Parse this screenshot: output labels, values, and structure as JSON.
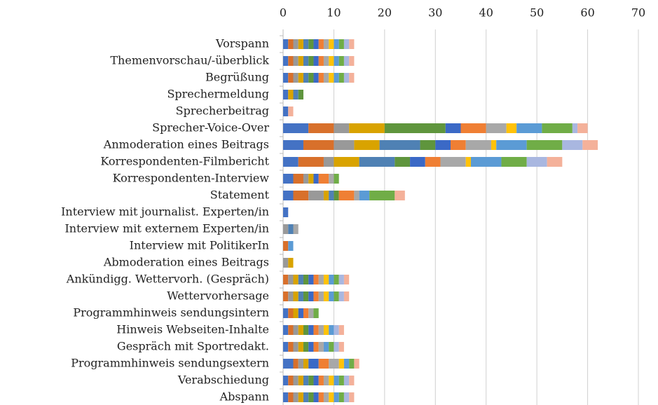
{
  "chart_data": {
    "type": "stacked_bar_horizontal",
    "categories": [
      "Vorspann",
      "Themenvorschau/-überblick",
      "Begrüßung",
      "Sprechermeldung",
      "Sprecherbeitrag",
      "Sprecher-Voice-Over",
      "Anmoderation eines Beitrags",
      "Korrespondenten-Filmbericht",
      "Korrespondenten-Interview",
      "Statement",
      "Interview mit journalist. Experten/in",
      "Interview mit externem Experten/in",
      "Interview mit PolitikerIn",
      "Abmoderation eines Beitrags",
      "Ankündigg. Wettervorh. (Gespräch)",
      "Wettervorhersage",
      "Programmhinweis sendungsintern",
      "Hinweis Webseiten-Inhalte",
      "Gespräch mit Sportredakt.",
      "Programmhinweis sendungsextern",
      "Verabschiedung",
      "Abspann"
    ],
    "series": [
      {
        "color": "#4472c4",
        "values": [
          1,
          1,
          1,
          1,
          1,
          5,
          4,
          3,
          2,
          2,
          1,
          0,
          0,
          0,
          0,
          0,
          1,
          1,
          1,
          2,
          1,
          1
        ]
      },
      {
        "color": "#d8702b",
        "values": [
          1,
          1,
          1,
          0,
          0,
          5,
          6,
          5,
          2,
          3,
          0,
          0,
          1,
          0,
          1,
          1,
          1,
          1,
          1,
          1,
          1,
          1
        ]
      },
      {
        "color": "#999999",
        "values": [
          1,
          1,
          1,
          0,
          0,
          3,
          4,
          2,
          1,
          3,
          0,
          1,
          0,
          1,
          1,
          1,
          0,
          1,
          1,
          1,
          1,
          1
        ]
      },
      {
        "color": "#d9a300",
        "values": [
          1,
          1,
          1,
          1,
          0,
          7,
          5,
          5,
          1,
          1,
          0,
          0,
          0,
          1,
          1,
          1,
          1,
          1,
          1,
          1,
          1,
          1
        ]
      },
      {
        "color": "#4f81b4",
        "values": [
          1,
          1,
          1,
          1,
          0,
          0,
          8,
          7,
          0,
          1,
          0,
          1,
          0,
          0,
          1,
          1,
          0,
          0,
          0,
          0,
          1,
          1
        ]
      },
      {
        "color": "#5f953d",
        "values": [
          1,
          1,
          1,
          1,
          0,
          12,
          3,
          3,
          0,
          1,
          0,
          0,
          0,
          0,
          1,
          1,
          0,
          1,
          1,
          0,
          1,
          1
        ]
      },
      {
        "color": "#3b69c6",
        "values": [
          1,
          1,
          1,
          0,
          0,
          3,
          3,
          3,
          1,
          0,
          0,
          0,
          0,
          0,
          1,
          1,
          1,
          1,
          1,
          2,
          1,
          1
        ]
      },
      {
        "color": "#ef7f34",
        "values": [
          1,
          1,
          1,
          0,
          0,
          5,
          3,
          3,
          2,
          3,
          0,
          0,
          0,
          0,
          1,
          1,
          1,
          1,
          1,
          2,
          1,
          1
        ]
      },
      {
        "color": "#a8a8a8",
        "values": [
          1,
          1,
          1,
          0,
          0,
          4,
          5,
          5,
          1,
          1,
          0,
          1,
          0,
          0,
          1,
          1,
          1,
          1,
          1,
          2,
          1,
          1
        ]
      },
      {
        "color": "#ffc20a",
        "values": [
          1,
          1,
          1,
          0,
          0,
          2,
          1,
          1,
          0,
          0,
          0,
          0,
          0,
          0,
          1,
          1,
          0,
          1,
          0,
          1,
          1,
          1
        ]
      },
      {
        "color": "#5b9bd5",
        "values": [
          1,
          1,
          1,
          0,
          0,
          5,
          6,
          6,
          0,
          2,
          0,
          0,
          1,
          0,
          1,
          1,
          0,
          1,
          1,
          1,
          1,
          1
        ]
      },
      {
        "color": "#70ad47",
        "values": [
          1,
          1,
          1,
          0,
          0,
          6,
          7,
          5,
          1,
          5,
          0,
          0,
          0,
          0,
          1,
          1,
          1,
          0,
          1,
          1,
          1,
          1
        ]
      },
      {
        "color": "#a9b7e0",
        "values": [
          1,
          1,
          1,
          0,
          0,
          1,
          4,
          4,
          0,
          0,
          0,
          0,
          0,
          0,
          1,
          1,
          0,
          1,
          1,
          0,
          1,
          1
        ]
      },
      {
        "color": "#f4b19a",
        "values": [
          1,
          1,
          1,
          0,
          1,
          2,
          3,
          3,
          0,
          2,
          0,
          0,
          0,
          0,
          1,
          1,
          0,
          1,
          1,
          1,
          1,
          1
        ]
      }
    ],
    "xlim": [
      0,
      70
    ],
    "xticks": [
      0,
      10,
      20,
      30,
      40,
      50,
      60,
      70
    ],
    "grid": true
  }
}
